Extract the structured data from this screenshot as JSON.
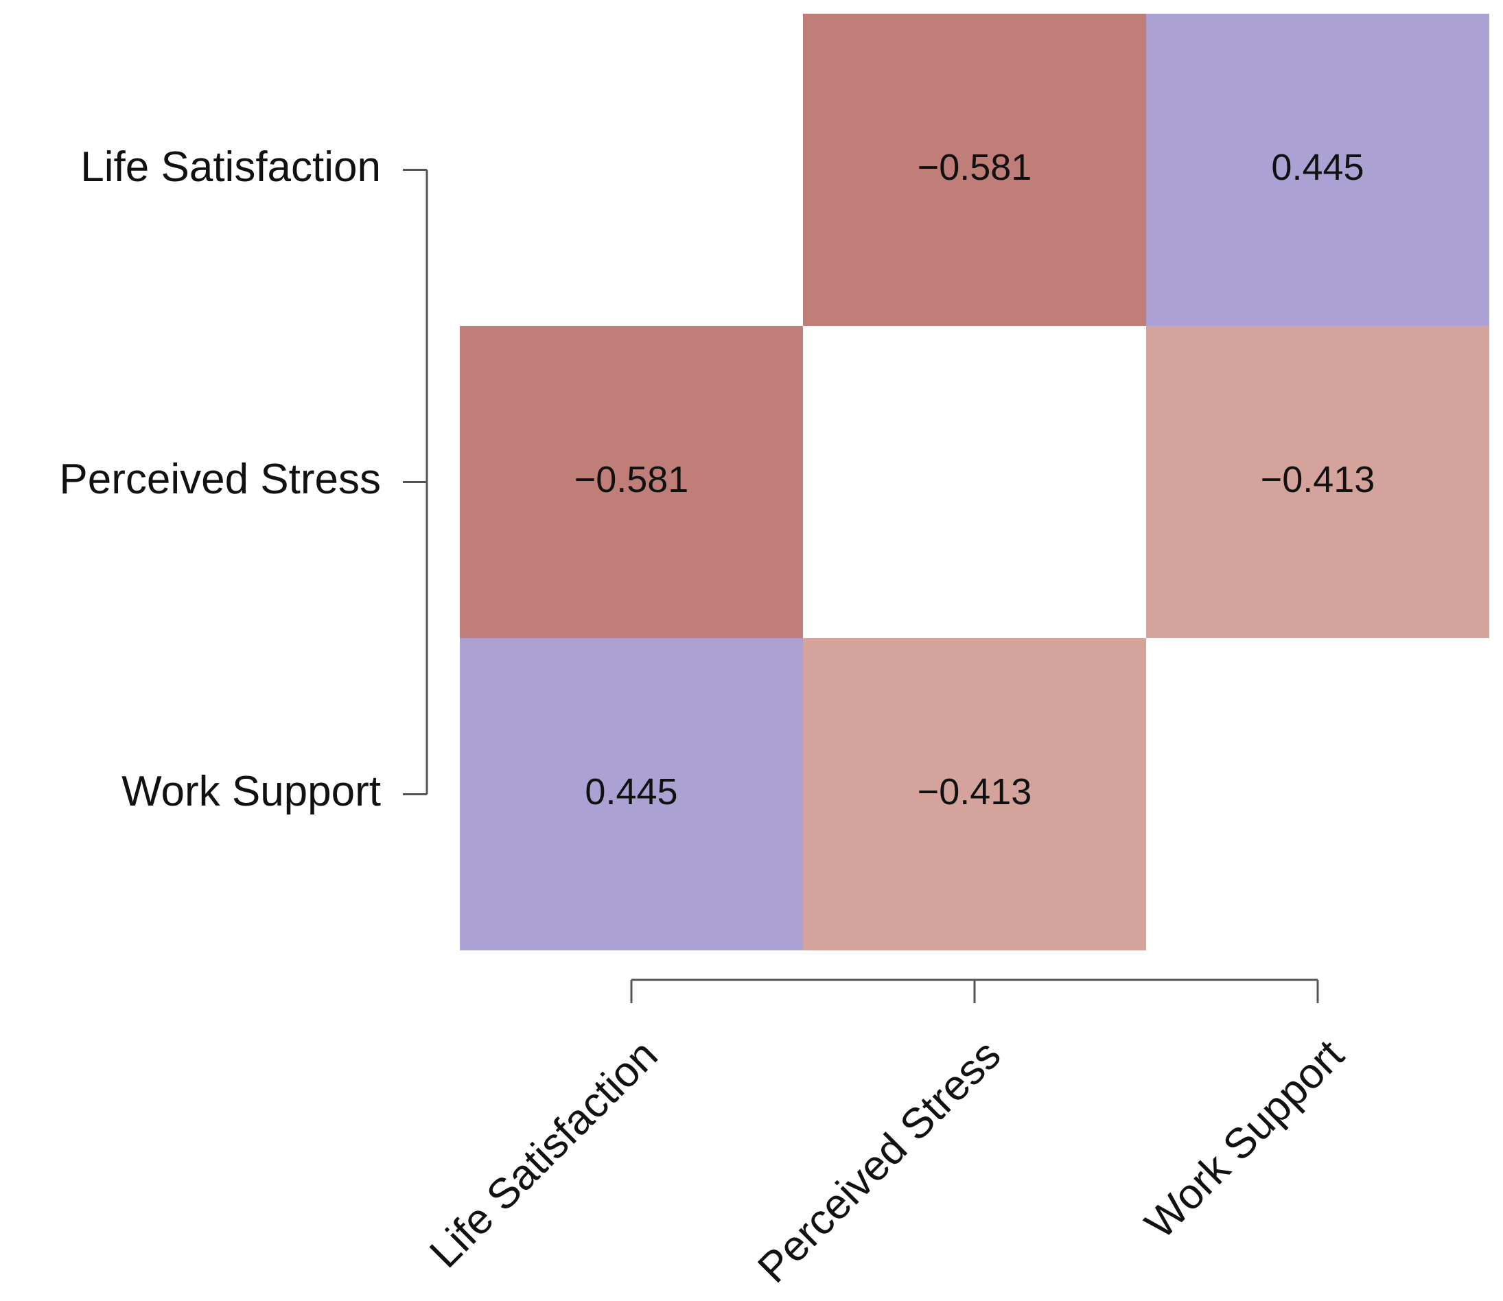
{
  "chart_data": {
    "type": "heatmap",
    "variables": [
      "Life Satisfaction",
      "Perceived Stress",
      "Work Support"
    ],
    "row_labels": [
      "Life Satisfaction",
      "Perceived Stress",
      "Work Support"
    ],
    "col_labels": [
      "Life Satisfaction",
      "Perceived Stress",
      "Work Support"
    ],
    "matrix": [
      [
        null,
        -0.581,
        0.445
      ],
      [
        -0.581,
        null,
        -0.413
      ],
      [
        0.445,
        -0.413,
        null
      ]
    ],
    "cell_text": [
      [
        "",
        "−0.581",
        "0.445"
      ],
      [
        "−0.581",
        "",
        "−0.413"
      ],
      [
        "0.445",
        "−0.413",
        ""
      ]
    ],
    "colors": {
      "strong_negative": "#bf7e78",
      "moderate_negative": "#d4a39c",
      "positive": "#aba1d2",
      "diagonal": "#ffffff"
    },
    "title": "",
    "xlabel": "",
    "ylabel": "",
    "legend": "none",
    "grid": false
  }
}
